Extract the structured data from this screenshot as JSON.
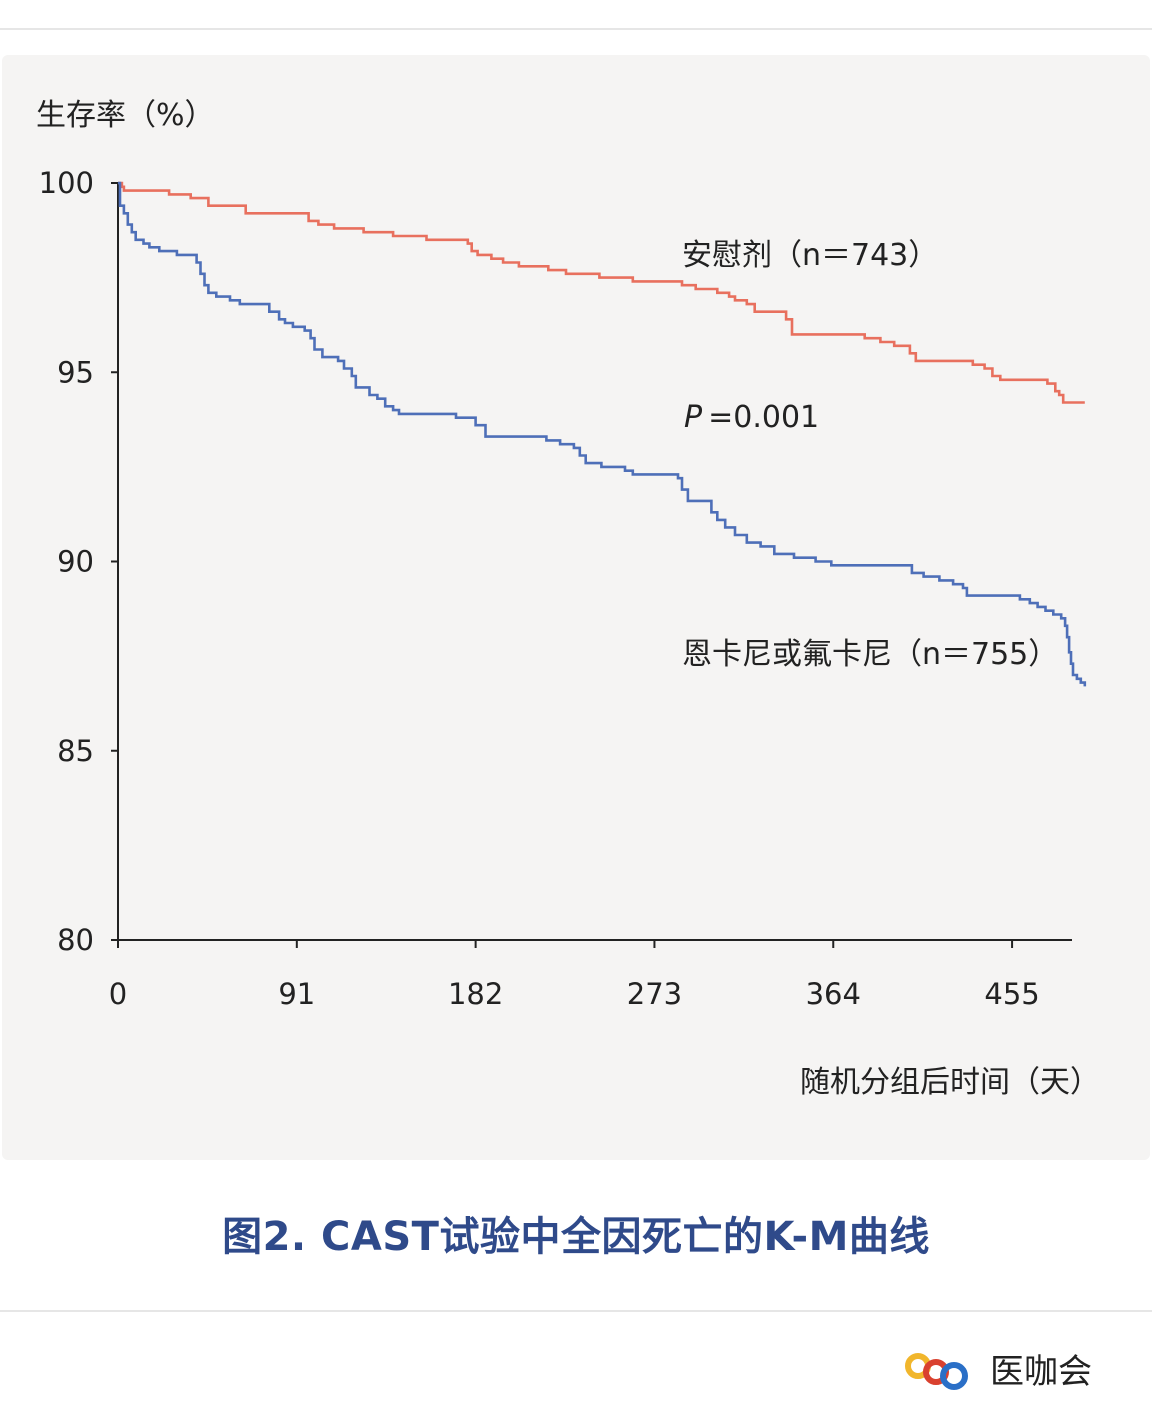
{
  "caption": "图2. CAST试验中全因死亡的K-M曲线",
  "watermark": {
    "brand": "医咖会"
  },
  "colors": {
    "placebo": "#e8705e",
    "drug": "#4e6fb8",
    "caption": "#2f4a8a",
    "background": "#f5f4f3"
  },
  "chart_data": {
    "type": "line",
    "subtype": "kaplan-meier-step",
    "ylabel": "生存率（%）",
    "xlabel": "随机分组后时间（天）",
    "ylim": [
      80,
      100
    ],
    "xlim": [
      0,
      500
    ],
    "x_ticks": [
      "0",
      "91",
      "182",
      "273",
      "364",
      "455"
    ],
    "x_tick_values": [
      0,
      91,
      182,
      273,
      364,
      455
    ],
    "y_ticks": [
      "100",
      "95",
      "90",
      "85",
      "80"
    ],
    "y_tick_values": [
      100,
      95,
      90,
      85,
      80
    ],
    "grid": false,
    "p_value": {
      "label": "P",
      "text": "=0.001"
    },
    "series": [
      {
        "name": "安慰剂（n＝743）",
        "key": "placebo",
        "points": [
          [
            0,
            100
          ],
          [
            2,
            99.9
          ],
          [
            3,
            99.8
          ],
          [
            26,
            99.7
          ],
          [
            37,
            99.6
          ],
          [
            46,
            99.4
          ],
          [
            65,
            99.2
          ],
          [
            97,
            99.0
          ],
          [
            102,
            98.9
          ],
          [
            110,
            98.8
          ],
          [
            125,
            98.7
          ],
          [
            140,
            98.6
          ],
          [
            157,
            98.5
          ],
          [
            178,
            98.4
          ],
          [
            180,
            98.2
          ],
          [
            183,
            98.1
          ],
          [
            190,
            98.0
          ],
          [
            196,
            97.9
          ],
          [
            204,
            97.8
          ],
          [
            219,
            97.7
          ],
          [
            228,
            97.6
          ],
          [
            245,
            97.5
          ],
          [
            262,
            97.4
          ],
          [
            287,
            97.3
          ],
          [
            294,
            97.2
          ],
          [
            305,
            97.1
          ],
          [
            311,
            97.0
          ],
          [
            314,
            96.9
          ],
          [
            320,
            96.8
          ],
          [
            324,
            96.6
          ],
          [
            340,
            96.4
          ],
          [
            343,
            96.0
          ],
          [
            366,
            96.0
          ],
          [
            380,
            95.9
          ],
          [
            388,
            95.8
          ],
          [
            395,
            95.7
          ],
          [
            403,
            95.5
          ],
          [
            406,
            95.3
          ],
          [
            435,
            95.2
          ],
          [
            441,
            95.1
          ],
          [
            445,
            94.9
          ],
          [
            449,
            94.8
          ],
          [
            470,
            94.8
          ],
          [
            473,
            94.7
          ],
          [
            477,
            94.5
          ],
          [
            479,
            94.4
          ],
          [
            481,
            94.2
          ],
          [
            492,
            94.2
          ]
        ]
      },
      {
        "name": "恩卡尼或氟卡尼（n＝755）",
        "key": "drug",
        "points": [
          [
            0,
            100
          ],
          [
            1,
            99.4
          ],
          [
            3,
            99.2
          ],
          [
            5,
            98.9
          ],
          [
            7,
            98.7
          ],
          [
            9,
            98.5
          ],
          [
            13,
            98.4
          ],
          [
            16,
            98.3
          ],
          [
            21,
            98.2
          ],
          [
            25,
            98.2
          ],
          [
            30,
            98.1
          ],
          [
            37,
            98.1
          ],
          [
            40,
            97.9
          ],
          [
            42,
            97.6
          ],
          [
            44,
            97.3
          ],
          [
            46,
            97.1
          ],
          [
            50,
            97.0
          ],
          [
            57,
            96.9
          ],
          [
            62,
            96.8
          ],
          [
            72,
            96.8
          ],
          [
            77,
            96.6
          ],
          [
            82,
            96.4
          ],
          [
            85,
            96.3
          ],
          [
            89,
            96.2
          ],
          [
            95,
            96.1
          ],
          [
            98,
            95.9
          ],
          [
            100,
            95.6
          ],
          [
            104,
            95.4
          ],
          [
            112,
            95.3
          ],
          [
            115,
            95.1
          ],
          [
            119,
            94.9
          ],
          [
            121,
            94.6
          ],
          [
            128,
            94.4
          ],
          [
            132,
            94.3
          ],
          [
            136,
            94.1
          ],
          [
            140,
            94.0
          ],
          [
            143,
            93.9
          ],
          [
            170,
            93.9
          ],
          [
            172,
            93.8
          ],
          [
            182,
            93.6
          ],
          [
            187,
            93.3
          ],
          [
            212,
            93.3
          ],
          [
            218,
            93.2
          ],
          [
            225,
            93.1
          ],
          [
            232,
            93.0
          ],
          [
            235,
            92.8
          ],
          [
            238,
            92.6
          ],
          [
            246,
            92.5
          ],
          [
            258,
            92.4
          ],
          [
            262,
            92.3
          ],
          [
            285,
            92.2
          ],
          [
            287,
            91.9
          ],
          [
            290,
            91.6
          ],
          [
            300,
            91.6
          ],
          [
            302,
            91.3
          ],
          [
            305,
            91.1
          ],
          [
            309,
            90.9
          ],
          [
            314,
            90.7
          ],
          [
            320,
            90.5
          ],
          [
            327,
            90.4
          ],
          [
            334,
            90.2
          ],
          [
            344,
            90.1
          ],
          [
            355,
            90.0
          ],
          [
            363,
            89.9
          ],
          [
            400,
            89.9
          ],
          [
            404,
            89.7
          ],
          [
            410,
            89.6
          ],
          [
            418,
            89.5
          ],
          [
            425,
            89.4
          ],
          [
            430,
            89.3
          ],
          [
            432,
            89.1
          ],
          [
            454,
            89.1
          ],
          [
            459,
            89.0
          ],
          [
            464,
            88.9
          ],
          [
            468,
            88.8
          ],
          [
            472,
            88.7
          ],
          [
            476,
            88.6
          ],
          [
            480,
            88.5
          ],
          [
            482,
            88.3
          ],
          [
            483,
            88.0
          ],
          [
            484,
            87.6
          ],
          [
            485,
            87.3
          ],
          [
            486,
            87.0
          ],
          [
            488,
            86.9
          ],
          [
            490,
            86.8
          ],
          [
            492,
            86.7
          ]
        ]
      }
    ]
  }
}
